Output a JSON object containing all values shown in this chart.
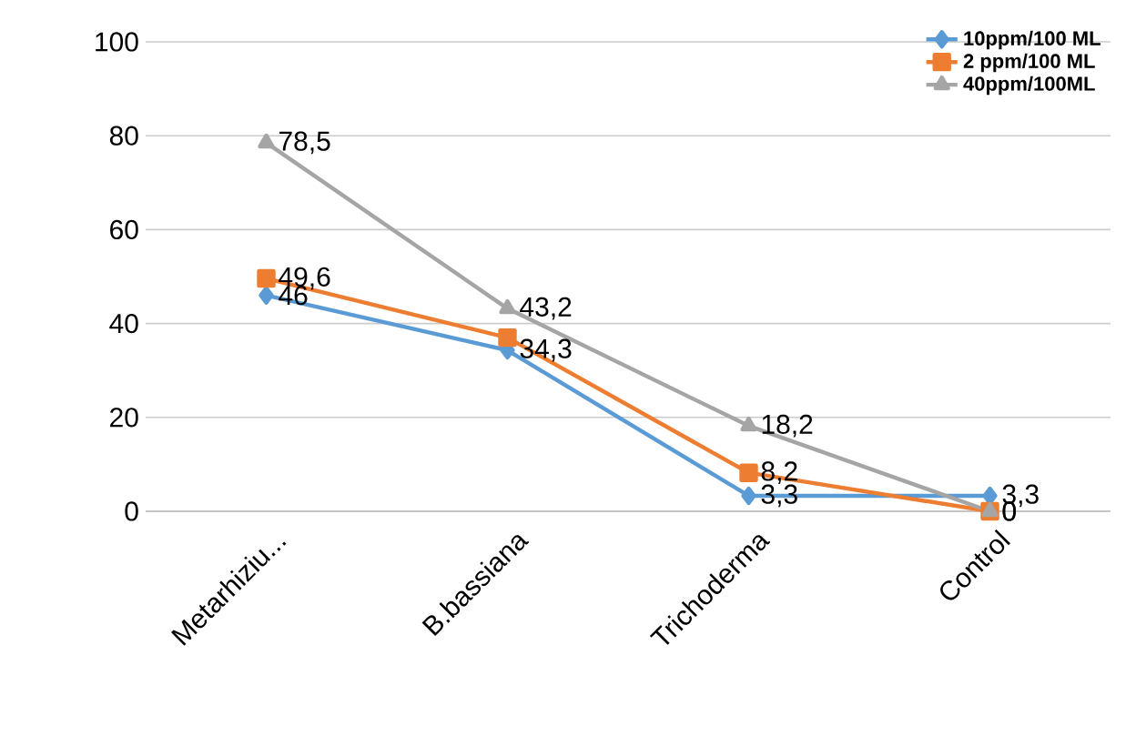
{
  "chart_data": {
    "type": "line",
    "categories": [
      "Metarhiziu...",
      "B.bassiana",
      "Trichoderma",
      "Control"
    ],
    "series": [
      {
        "name": "10ppm/100 ML",
        "color": "#5b9bd5",
        "marker": "diamond",
        "values": [
          46,
          34.3,
          3.3,
          3.3
        ],
        "value_labels": [
          "46",
          "34,3",
          "3,3",
          "3,3"
        ]
      },
      {
        "name": "2 ppm/100 ML",
        "color": "#ed7d31",
        "marker": "square",
        "values": [
          49.6,
          37,
          8.2,
          0
        ],
        "value_labels": [
          "49,6",
          null,
          "8,2",
          "0"
        ]
      },
      {
        "name": "40ppm/100ML",
        "color": "#a5a5a5",
        "marker": "triangle",
        "values": [
          78.5,
          43.2,
          18.2,
          0
        ],
        "value_labels": [
          "78,5",
          "43,2",
          "18,2",
          "0"
        ]
      }
    ],
    "ylim": [
      0,
      100
    ],
    "yticks": [
      0,
      20,
      40,
      60,
      80,
      100
    ],
    "grid": "y",
    "legend": "top right"
  }
}
